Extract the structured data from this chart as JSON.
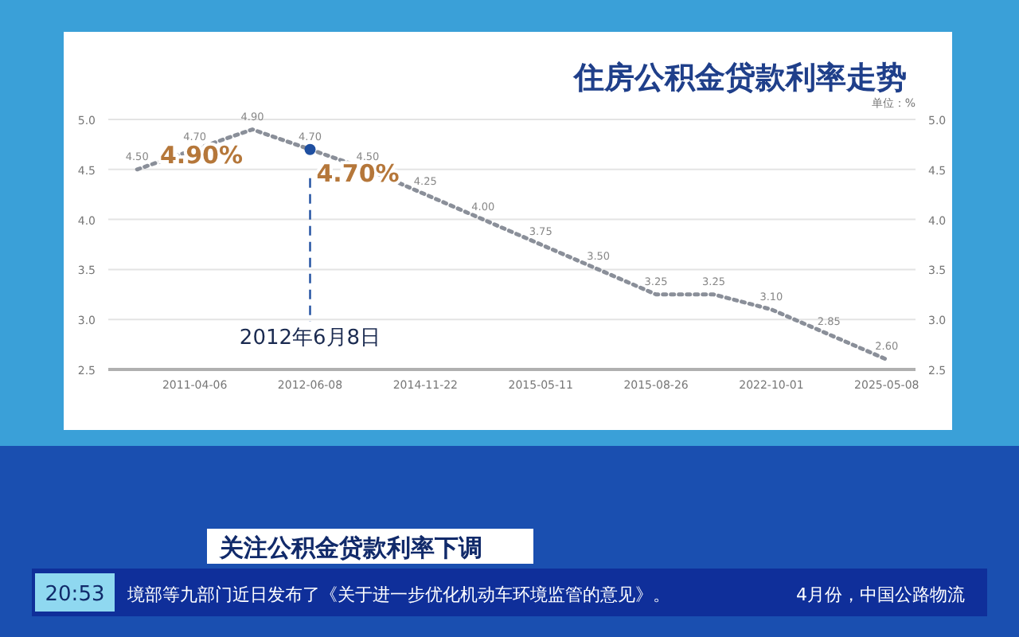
{
  "chart_data": {
    "type": "line",
    "title": "住房公积金贷款利率走势",
    "subtitle": "关注公积金贷款利率下调",
    "categories": [
      null,
      "2011-04-06",
      null,
      "2012-06-08",
      null,
      "2014-11-22",
      null,
      "2015-05-11",
      null,
      "2015-08-26",
      null,
      "2022-10-01",
      null,
      "2025-05-08"
    ],
    "series": [
      {
        "color": "#8a8f99",
        "values": [
          4.5,
          4.7,
          4.9,
          4.7,
          4.5,
          4.25,
          4.0,
          3.75,
          3.5,
          3.25,
          3.25,
          3.1,
          2.85,
          2.6
        ],
        "value_labels": [
          "4.50",
          "4.70",
          "4.90",
          "4.70",
          "4.50",
          "4.25",
          "4.00",
          "3.75",
          "3.50",
          "3.25",
          "3.25",
          "3.10",
          "2.85",
          "2.60"
        ]
      }
    ],
    "ylim": [
      2.5,
      5.0
    ],
    "yticks": [
      2.5,
      {
        "value": 3,
        "label": "3.0"
      },
      3.5,
      {
        "value": 4,
        "label": "4.0"
      },
      4.5,
      {
        "value": 5,
        "label": "5.0"
      }
    ],
    "y2lim": [
      2.5,
      5.0
    ],
    "y2ticks": [
      2.5,
      {
        "value": 3,
        "label": "3.0"
      },
      3.5,
      {
        "value": 4,
        "label": "4.0"
      },
      4.5,
      {
        "value": 5,
        "label": "5.0"
      }
    ],
    "grid": "y",
    "line_style": "dotted",
    "ref_lines": [
      {
        "axis": "x",
        "value": "2012-06-08",
        "label": "2012年6月8日",
        "color": "#1f4fa0",
        "line_style": "dashed"
      }
    ],
    "annotations": [
      "4.90%",
      {
        "text": "4.70%",
        "x": "2012-06-08",
        "y": 4.7
      },
      "单位：%",
      "20:53",
      "境部等九部门近日发布了《关于进一步优化机动车环境监管的意见》。",
      "4月份，中国公路物流"
    ]
  }
}
